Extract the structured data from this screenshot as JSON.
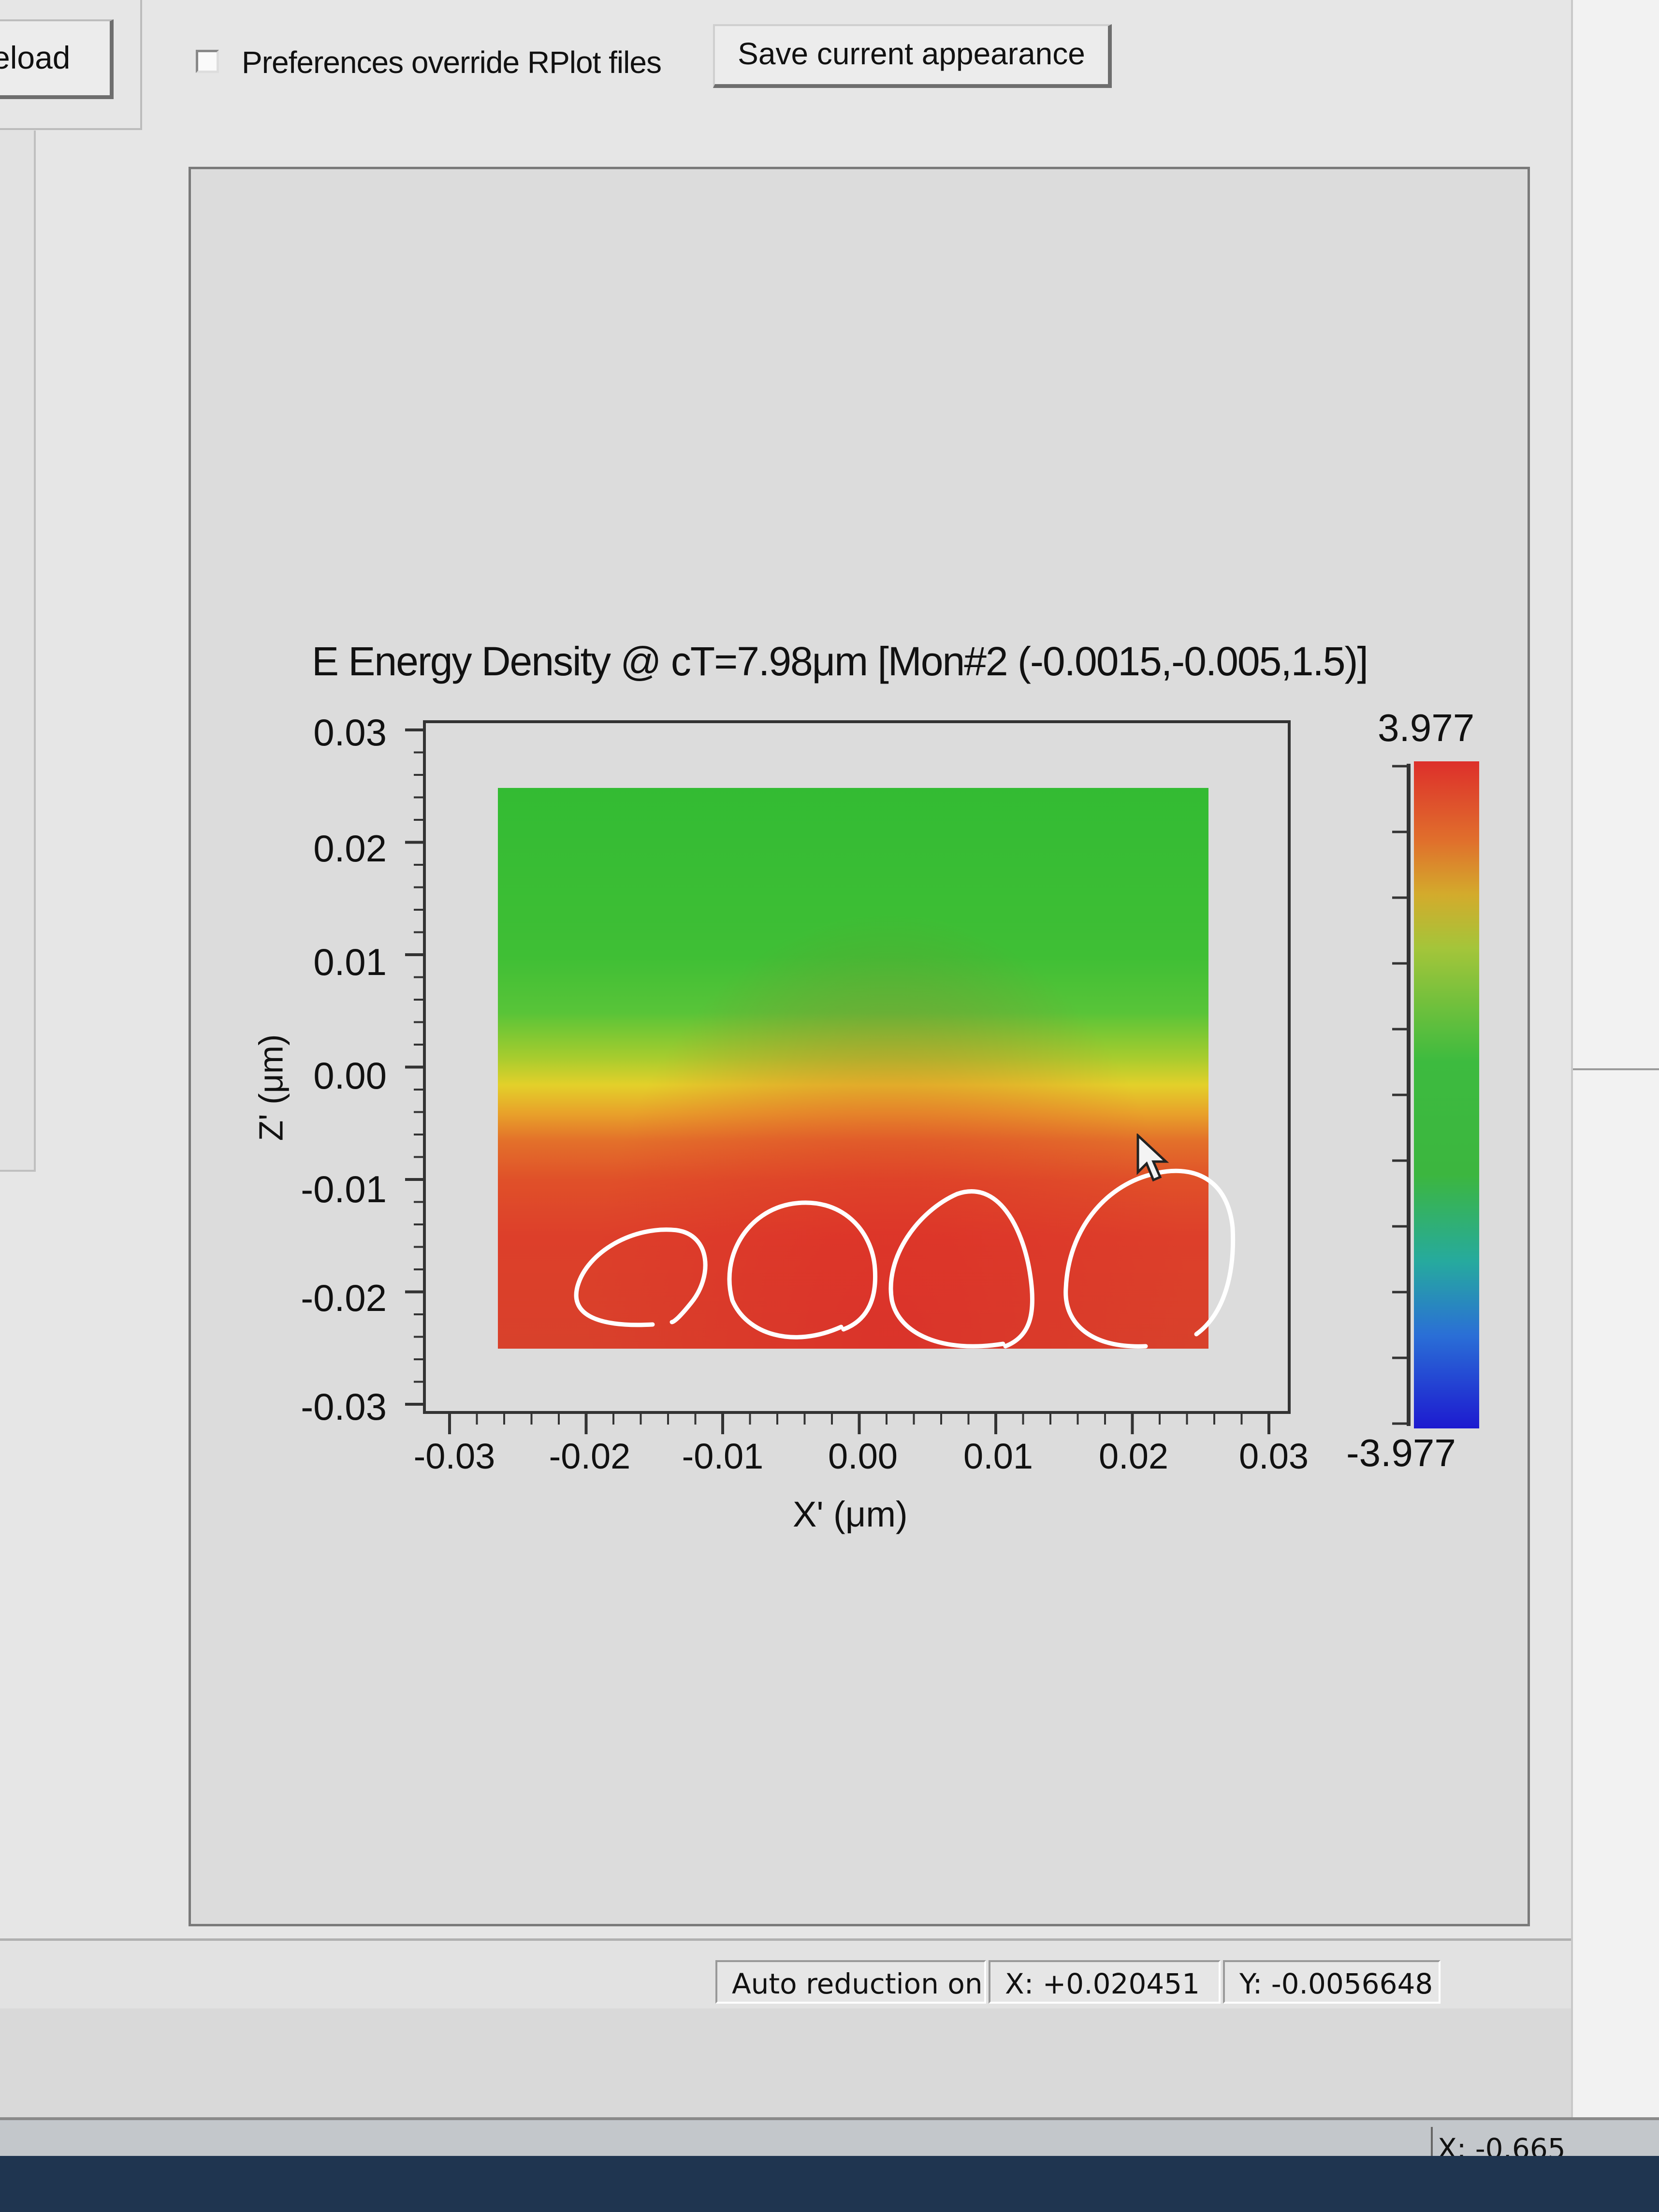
{
  "toolbar": {
    "reload_label": "eload",
    "preferences_checkbox_label": "Preferences override RPlot files",
    "preferences_checked": false,
    "save_button_label": "Save current appearance"
  },
  "plot": {
    "title": "E Energy Density @ cT=7.98μm [Mon#2 (-0.0015,-0.005,1.5)]",
    "xlabel": "X' (μm)",
    "ylabel": "Z' (μm)",
    "yticks": [
      "0.03",
      "0.02",
      "0.01",
      "0.00",
      "-0.01",
      "-0.02",
      "-0.03"
    ],
    "xticks": [
      "-0.03",
      "-0.02",
      "-0.01",
      "0.00",
      "0.01",
      "0.02",
      "0.03"
    ],
    "colorbar_max": "3.977",
    "colorbar_min": "-3.977"
  },
  "chart_data": {
    "type": "heatmap",
    "title": "E Energy Density @ cT=7.98μm [Mon#2 (-0.0015,-0.005,1.5)]",
    "xlabel": "X' (μm)",
    "ylabel": "Z' (μm)",
    "xlim": [
      -0.03,
      0.03
    ],
    "ylim": [
      -0.03,
      0.03
    ],
    "color_range": [
      -3.977,
      3.977
    ],
    "colormap": [
      "#1d1ad0",
      "#2a6fd6",
      "#26aa9e",
      "#3cb63f",
      "#a4c53a",
      "#d3ab2c",
      "#e0702c",
      "#dd2f2b"
    ]
  },
  "status": {
    "auto_reduction": "Auto reduction on",
    "x_coord": "X: +0.020451",
    "y_coord": "Y: -0.0056648",
    "bottom_coord": "X: -0.665"
  }
}
